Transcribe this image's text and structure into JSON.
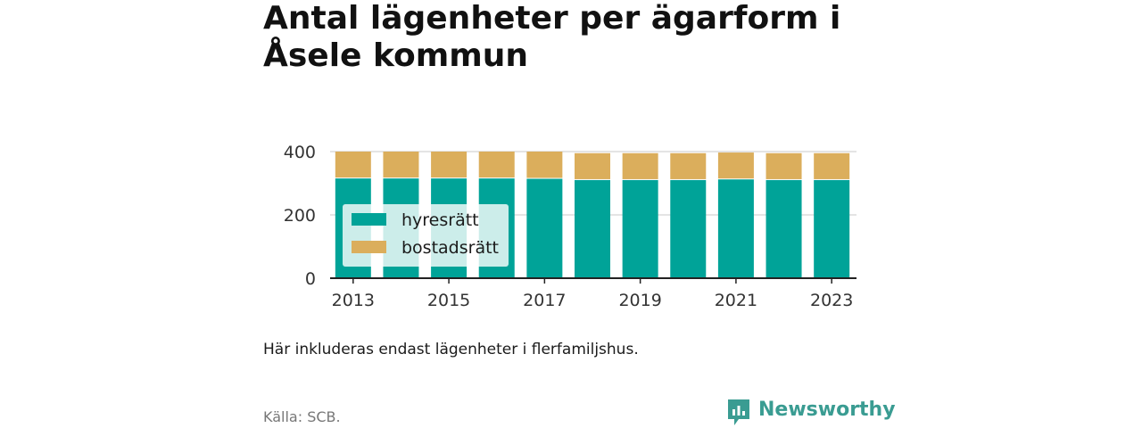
{
  "title": "Antal lägenheter per ägarform i Åsele kommun",
  "note": "Här inkluderas endast lägenheter i flerfamiljshus.",
  "source": "Källa: SCB.",
  "brand": {
    "name": "Newsworthy",
    "color": "#3a9c92"
  },
  "chart_data": {
    "type": "bar",
    "stacked": true,
    "title": "Antal lägenheter per ägarform i Åsele kommun",
    "xlabel": "",
    "ylabel": "",
    "categories": [
      "2013",
      "2014",
      "2015",
      "2016",
      "2017",
      "2018",
      "2019",
      "2020",
      "2021",
      "2022",
      "2023"
    ],
    "x_tick_labels": [
      "2013",
      "2015",
      "2017",
      "2019",
      "2021",
      "2023"
    ],
    "y_ticks": [
      0,
      200,
      400
    ],
    "ylim": [
      0,
      400
    ],
    "grid": true,
    "legend_position": "inside-left",
    "series": [
      {
        "name": "hyresrätt",
        "color": "#00a398",
        "values": [
          315,
          315,
          315,
          315,
          314,
          310,
          310,
          310,
          312,
          310,
          310
        ]
      },
      {
        "name": "bostadsrätt",
        "color": "#dbae5c",
        "values": [
          85,
          85,
          85,
          85,
          86,
          85,
          85,
          85,
          85,
          85,
          85
        ]
      }
    ]
  }
}
